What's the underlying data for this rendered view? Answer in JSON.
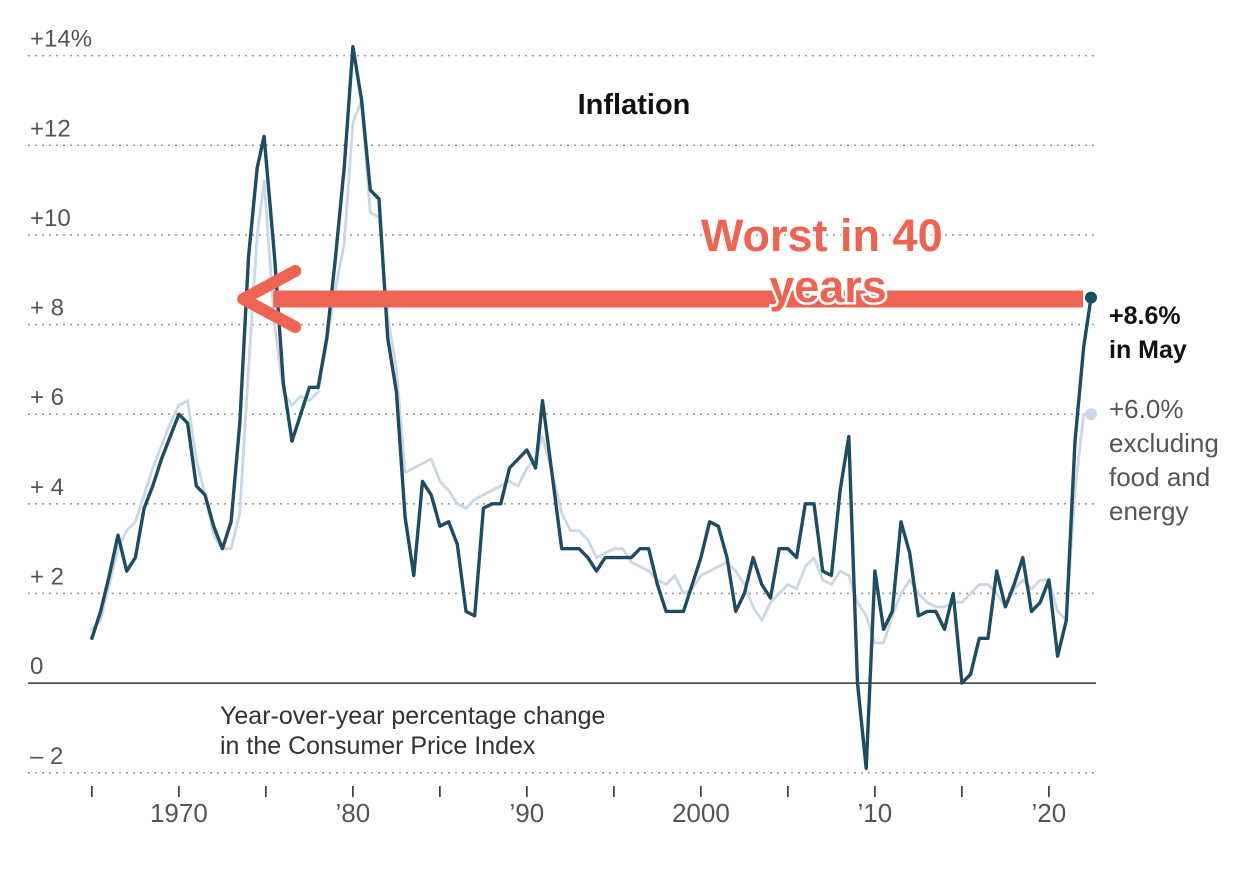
{
  "chart_data": {
    "type": "line",
    "title": "Inflation",
    "subtitle_lines": [
      "Year-over-year percentage change",
      "in the Consumer Price Index"
    ],
    "x_ticks": [
      {
        "year": 1965,
        "label": ""
      },
      {
        "year": 1970,
        "label": "1970"
      },
      {
        "year": 1975,
        "label": ""
      },
      {
        "year": 1980,
        "label": "’80"
      },
      {
        "year": 1985,
        "label": ""
      },
      {
        "year": 1990,
        "label": "’90"
      },
      {
        "year": 1995,
        "label": ""
      },
      {
        "year": 2000,
        "label": "2000"
      },
      {
        "year": 2005,
        "label": ""
      },
      {
        "year": 2010,
        "label": "’10"
      },
      {
        "year": 2015,
        "label": ""
      },
      {
        "year": 2020,
        "label": "’20"
      }
    ],
    "y_ticks": [
      {
        "value": 14,
        "label": "+14%"
      },
      {
        "value": 12,
        "label": "+12"
      },
      {
        "value": 10,
        "label": "+10"
      },
      {
        "value": 8,
        "label": "+  8"
      },
      {
        "value": 6,
        "label": "+  6"
      },
      {
        "value": 4,
        "label": "+  4"
      },
      {
        "value": 2,
        "label": "+  2"
      },
      {
        "value": 0,
        "label": "0"
      },
      {
        "value": -2,
        "label": "–  2"
      }
    ],
    "xlim": [
      1964.95,
      2022.42
    ],
    "ylim": [
      -2.05,
      14.75
    ],
    "grid": true,
    "series": [
      {
        "label_lines": [
          "+8.6%",
          "in May"
        ],
        "color": "#1e4d63",
        "points": [
          [
            1965.0,
            1.0
          ],
          [
            1965.5,
            1.6
          ],
          [
            1966.0,
            2.4
          ],
          [
            1966.5,
            3.3
          ],
          [
            1967.0,
            2.5
          ],
          [
            1967.5,
            2.8
          ],
          [
            1968.0,
            3.9
          ],
          [
            1968.5,
            4.4
          ],
          [
            1969.0,
            5.0
          ],
          [
            1969.5,
            5.5
          ],
          [
            1970.0,
            6.0
          ],
          [
            1970.5,
            5.8
          ],
          [
            1971.0,
            4.4
          ],
          [
            1971.5,
            4.2
          ],
          [
            1972.0,
            3.5
          ],
          [
            1972.5,
            3.0
          ],
          [
            1973.0,
            3.6
          ],
          [
            1973.5,
            5.8
          ],
          [
            1974.0,
            9.5
          ],
          [
            1974.5,
            11.5
          ],
          [
            1974.9,
            12.2
          ],
          [
            1975.5,
            9.5
          ],
          [
            1976.0,
            6.7
          ],
          [
            1976.5,
            5.4
          ],
          [
            1977.0,
            6.0
          ],
          [
            1977.5,
            6.6
          ],
          [
            1978.0,
            6.6
          ],
          [
            1978.5,
            7.7
          ],
          [
            1979.0,
            9.5
          ],
          [
            1979.5,
            11.5
          ],
          [
            1980.0,
            14.2
          ],
          [
            1980.5,
            13.0
          ],
          [
            1981.0,
            11.0
          ],
          [
            1981.5,
            10.8
          ],
          [
            1982.0,
            7.7
          ],
          [
            1982.5,
            6.5
          ],
          [
            1983.0,
            3.7
          ],
          [
            1983.5,
            2.4
          ],
          [
            1984.0,
            4.5
          ],
          [
            1984.5,
            4.2
          ],
          [
            1985.0,
            3.5
          ],
          [
            1985.5,
            3.6
          ],
          [
            1986.0,
            3.1
          ],
          [
            1986.5,
            1.6
          ],
          [
            1987.0,
            1.5
          ],
          [
            1987.5,
            3.9
          ],
          [
            1988.0,
            4.0
          ],
          [
            1988.5,
            4.0
          ],
          [
            1989.0,
            4.8
          ],
          [
            1989.5,
            5.0
          ],
          [
            1990.0,
            5.2
          ],
          [
            1990.5,
            4.8
          ],
          [
            1990.9,
            6.3
          ],
          [
            1991.5,
            4.5
          ],
          [
            1992.0,
            3.0
          ],
          [
            1992.5,
            3.0
          ],
          [
            1993.0,
            3.0
          ],
          [
            1993.5,
            2.8
          ],
          [
            1994.0,
            2.5
          ],
          [
            1994.5,
            2.8
          ],
          [
            1995.0,
            2.8
          ],
          [
            1995.5,
            2.8
          ],
          [
            1996.0,
            2.8
          ],
          [
            1996.5,
            3.0
          ],
          [
            1997.0,
            3.0
          ],
          [
            1997.5,
            2.2
          ],
          [
            1998.0,
            1.6
          ],
          [
            1998.5,
            1.6
          ],
          [
            1999.0,
            1.6
          ],
          [
            1999.5,
            2.2
          ],
          [
            2000.0,
            2.8
          ],
          [
            2000.5,
            3.6
          ],
          [
            2001.0,
            3.5
          ],
          [
            2001.5,
            2.8
          ],
          [
            2002.0,
            1.6
          ],
          [
            2002.5,
            2.0
          ],
          [
            2003.0,
            2.8
          ],
          [
            2003.5,
            2.2
          ],
          [
            2004.0,
            1.9
          ],
          [
            2004.5,
            3.0
          ],
          [
            2005.0,
            3.0
          ],
          [
            2005.5,
            2.8
          ],
          [
            2006.0,
            4.0
          ],
          [
            2006.5,
            4.0
          ],
          [
            2007.0,
            2.5
          ],
          [
            2007.5,
            2.4
          ],
          [
            2008.0,
            4.3
          ],
          [
            2008.5,
            5.5
          ],
          [
            2009.0,
            0.0
          ],
          [
            2009.5,
            -1.9
          ],
          [
            2010.0,
            2.5
          ],
          [
            2010.5,
            1.2
          ],
          [
            2011.0,
            1.6
          ],
          [
            2011.5,
            3.6
          ],
          [
            2012.0,
            2.9
          ],
          [
            2012.5,
            1.5
          ],
          [
            2013.0,
            1.6
          ],
          [
            2013.5,
            1.6
          ],
          [
            2014.0,
            1.2
          ],
          [
            2014.5,
            2.0
          ],
          [
            2015.0,
            0.0
          ],
          [
            2015.5,
            0.2
          ],
          [
            2016.0,
            1.0
          ],
          [
            2016.5,
            1.0
          ],
          [
            2017.0,
            2.5
          ],
          [
            2017.5,
            1.7
          ],
          [
            2018.0,
            2.2
          ],
          [
            2018.5,
            2.8
          ],
          [
            2019.0,
            1.6
          ],
          [
            2019.5,
            1.8
          ],
          [
            2020.0,
            2.3
          ],
          [
            2020.5,
            0.6
          ],
          [
            2021.0,
            1.4
          ],
          [
            2021.5,
            5.4
          ],
          [
            2022.0,
            7.5
          ],
          [
            2022.42,
            8.6
          ]
        ]
      },
      {
        "label_lines": [
          "+6.0%",
          "excluding",
          "food and",
          "energy"
        ],
        "color": "#cad8e6",
        "points": [
          [
            1965.0,
            1.2
          ],
          [
            1965.5,
            1.4
          ],
          [
            1966.0,
            2.2
          ],
          [
            1966.5,
            3.0
          ],
          [
            1967.0,
            3.4
          ],
          [
            1967.5,
            3.6
          ],
          [
            1968.0,
            4.2
          ],
          [
            1968.5,
            4.8
          ],
          [
            1969.0,
            5.3
          ],
          [
            1969.5,
            5.8
          ],
          [
            1970.0,
            6.2
          ],
          [
            1970.5,
            6.3
          ],
          [
            1971.0,
            5.0
          ],
          [
            1971.5,
            4.2
          ],
          [
            1972.0,
            3.3
          ],
          [
            1972.5,
            3.0
          ],
          [
            1973.0,
            3.0
          ],
          [
            1973.5,
            3.8
          ],
          [
            1974.0,
            7.0
          ],
          [
            1974.5,
            10.0
          ],
          [
            1974.9,
            11.2
          ],
          [
            1975.5,
            8.0
          ],
          [
            1976.0,
            6.5
          ],
          [
            1976.5,
            6.2
          ],
          [
            1977.0,
            6.4
          ],
          [
            1977.5,
            6.3
          ],
          [
            1978.0,
            6.5
          ],
          [
            1978.5,
            7.6
          ],
          [
            1979.0,
            8.8
          ],
          [
            1979.5,
            9.8
          ],
          [
            1980.0,
            12.5
          ],
          [
            1980.5,
            13.0
          ],
          [
            1981.0,
            10.5
          ],
          [
            1981.5,
            10.4
          ],
          [
            1982.0,
            8.2
          ],
          [
            1982.5,
            7.0
          ],
          [
            1983.0,
            4.7
          ],
          [
            1983.5,
            4.8
          ],
          [
            1984.0,
            4.9
          ],
          [
            1984.5,
            5.0
          ],
          [
            1985.0,
            4.5
          ],
          [
            1985.5,
            4.3
          ],
          [
            1986.0,
            4.0
          ],
          [
            1986.5,
            3.9
          ],
          [
            1987.0,
            4.1
          ],
          [
            1987.5,
            4.2
          ],
          [
            1988.0,
            4.3
          ],
          [
            1988.5,
            4.4
          ],
          [
            1989.0,
            4.5
          ],
          [
            1989.5,
            4.4
          ],
          [
            1990.0,
            4.8
          ],
          [
            1990.5,
            5.0
          ],
          [
            1990.9,
            5.5
          ],
          [
            1991.5,
            4.6
          ],
          [
            1992.0,
            3.8
          ],
          [
            1992.5,
            3.4
          ],
          [
            1993.0,
            3.4
          ],
          [
            1993.5,
            3.2
          ],
          [
            1994.0,
            2.8
          ],
          [
            1994.5,
            2.9
          ],
          [
            1995.0,
            3.0
          ],
          [
            1995.5,
            3.0
          ],
          [
            1996.0,
            2.7
          ],
          [
            1996.5,
            2.6
          ],
          [
            1997.0,
            2.5
          ],
          [
            1997.5,
            2.3
          ],
          [
            1998.0,
            2.2
          ],
          [
            1998.5,
            2.4
          ],
          [
            1999.0,
            2.0
          ],
          [
            1999.5,
            2.1
          ],
          [
            2000.0,
            2.4
          ],
          [
            2000.5,
            2.5
          ],
          [
            2001.0,
            2.6
          ],
          [
            2001.5,
            2.7
          ],
          [
            2002.0,
            2.5
          ],
          [
            2002.5,
            2.2
          ],
          [
            2003.0,
            1.7
          ],
          [
            2003.5,
            1.4
          ],
          [
            2004.0,
            1.8
          ],
          [
            2004.5,
            2.0
          ],
          [
            2005.0,
            2.2
          ],
          [
            2005.5,
            2.1
          ],
          [
            2006.0,
            2.6
          ],
          [
            2006.5,
            2.8
          ],
          [
            2007.0,
            2.3
          ],
          [
            2007.5,
            2.2
          ],
          [
            2008.0,
            2.5
          ],
          [
            2008.5,
            2.4
          ],
          [
            2009.0,
            1.8
          ],
          [
            2009.5,
            1.5
          ],
          [
            2010.0,
            0.9
          ],
          [
            2010.5,
            0.9
          ],
          [
            2011.0,
            1.5
          ],
          [
            2011.5,
            2.0
          ],
          [
            2012.0,
            2.3
          ],
          [
            2012.5,
            2.0
          ],
          [
            2013.0,
            1.8
          ],
          [
            2013.5,
            1.7
          ],
          [
            2014.0,
            1.7
          ],
          [
            2014.5,
            1.8
          ],
          [
            2015.0,
            1.8
          ],
          [
            2015.5,
            2.0
          ],
          [
            2016.0,
            2.2
          ],
          [
            2016.5,
            2.2
          ],
          [
            2017.0,
            2.0
          ],
          [
            2017.5,
            1.7
          ],
          [
            2018.0,
            2.1
          ],
          [
            2018.5,
            2.3
          ],
          [
            2019.0,
            2.1
          ],
          [
            2019.5,
            2.3
          ],
          [
            2020.0,
            2.3
          ],
          [
            2020.5,
            1.6
          ],
          [
            2021.0,
            1.4
          ],
          [
            2021.5,
            4.3
          ],
          [
            2022.0,
            6.0
          ],
          [
            2022.42,
            6.0
          ]
        ]
      }
    ],
    "annotation": {
      "text_lines": [
        "Worst in 40",
        "years"
      ],
      "color": "#ee6452",
      "arrow_from_year": 2022.42,
      "arrow_to_year": 1973.7,
      "arrow_value": 8.6
    }
  }
}
